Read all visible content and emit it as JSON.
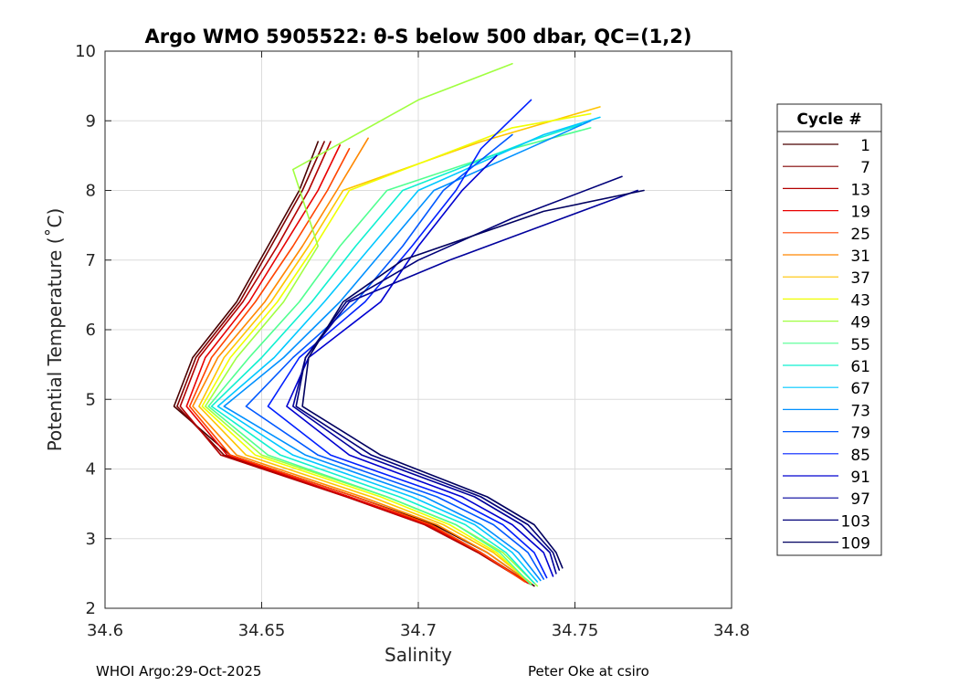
{
  "chart_data": {
    "type": "line",
    "title": "Argo WMO 5905522: θ-S below 500 dbar,  QC=(1,2)",
    "xlabel": "Salinity",
    "ylabel": "Potential Temperature (˚C)",
    "xlim": [
      34.6,
      34.8
    ],
    "ylim": [
      2,
      10
    ],
    "xticks": [
      "34.6",
      "34.65",
      "34.7",
      "34.75",
      "34.8"
    ],
    "yticks": [
      "2",
      "3",
      "4",
      "5",
      "6",
      "7",
      "8",
      "9",
      "10"
    ],
    "grid": true,
    "legend": {
      "title": "Cycle #",
      "placement": "right",
      "entries": [
        {
          "label": "1",
          "color": "#4a0000"
        },
        {
          "label": "7",
          "color": "#800000"
        },
        {
          "label": "13",
          "color": "#b40000"
        },
        {
          "label": "19",
          "color": "#e80000"
        },
        {
          "label": "25",
          "color": "#ff4400"
        },
        {
          "label": "31",
          "color": "#ff8800"
        },
        {
          "label": "37",
          "color": "#ffc400"
        },
        {
          "label": "43",
          "color": "#f0ff00"
        },
        {
          "label": "49",
          "color": "#a0ff40"
        },
        {
          "label": "55",
          "color": "#50ff90"
        },
        {
          "label": "61",
          "color": "#10f0d0"
        },
        {
          "label": "67",
          "color": "#00c8ff"
        },
        {
          "label": "73",
          "color": "#0090ff"
        },
        {
          "label": "79",
          "color": "#0058ff"
        },
        {
          "label": "85",
          "color": "#0020ff"
        },
        {
          "label": "91",
          "color": "#0000d0"
        },
        {
          "label": "97",
          "color": "#00009c"
        },
        {
          "label": "103",
          "color": "#000078"
        },
        {
          "label": "109",
          "color": "#000060"
        }
      ]
    },
    "series": [
      {
        "name": "1",
        "x": [
          34.737,
          34.722,
          34.705,
          34.68,
          34.64,
          34.622,
          34.628,
          34.642,
          34.652,
          34.662,
          34.668
        ],
        "y": [
          2.32,
          2.8,
          3.2,
          3.6,
          4.2,
          4.9,
          5.6,
          6.4,
          7.2,
          8.0,
          8.7
        ]
      },
      {
        "name": "7",
        "x": [
          34.736,
          34.72,
          34.703,
          34.678,
          34.638,
          34.623,
          34.629,
          34.643,
          34.653,
          34.663,
          34.67
        ],
        "y": [
          2.34,
          2.8,
          3.2,
          3.6,
          4.2,
          4.9,
          5.6,
          6.4,
          7.2,
          8.0,
          8.7
        ]
      },
      {
        "name": "13",
        "x": [
          34.735,
          34.719,
          34.702,
          34.677,
          34.637,
          34.624,
          34.63,
          34.644,
          34.655,
          34.665,
          34.672
        ],
        "y": [
          2.36,
          2.8,
          3.2,
          3.6,
          4.2,
          4.9,
          5.6,
          6.4,
          7.2,
          8.0,
          8.7
        ]
      },
      {
        "name": "19",
        "x": [
          34.735,
          34.72,
          34.703,
          34.678,
          34.639,
          34.626,
          34.632,
          34.646,
          34.657,
          34.668,
          34.675
        ],
        "y": [
          2.36,
          2.8,
          3.2,
          3.6,
          4.2,
          4.9,
          5.6,
          6.4,
          7.2,
          8.0,
          8.65
        ]
      },
      {
        "name": "25",
        "x": [
          34.734,
          34.72,
          34.704,
          34.68,
          34.64,
          34.627,
          34.634,
          34.648,
          34.66,
          34.671,
          34.678
        ],
        "y": [
          2.38,
          2.8,
          3.2,
          3.6,
          4.2,
          4.9,
          5.6,
          6.4,
          7.2,
          8.0,
          8.6
        ]
      },
      {
        "name": "31",
        "x": [
          34.735,
          34.722,
          34.706,
          34.682,
          34.642,
          34.628,
          34.636,
          34.651,
          34.663,
          34.674,
          34.684
        ],
        "y": [
          2.38,
          2.8,
          3.2,
          3.6,
          4.2,
          4.9,
          5.6,
          6.4,
          7.2,
          8.0,
          8.75
        ]
      },
      {
        "name": "37",
        "x": [
          34.736,
          34.724,
          34.708,
          34.685,
          34.645,
          34.63,
          34.638,
          34.653,
          34.665,
          34.676,
          34.72,
          34.758
        ],
        "y": [
          2.36,
          2.8,
          3.2,
          3.6,
          4.2,
          4.9,
          5.6,
          6.4,
          7.2,
          8.0,
          8.7,
          9.2
        ]
      },
      {
        "name": "43",
        "x": [
          34.736,
          34.725,
          34.71,
          34.688,
          34.648,
          34.631,
          34.64,
          34.655,
          34.667,
          34.678,
          34.73,
          34.755
        ],
        "y": [
          2.34,
          2.8,
          3.2,
          3.6,
          4.2,
          4.9,
          5.6,
          6.4,
          7.2,
          8.0,
          8.9,
          9.1
        ]
      },
      {
        "name": "49",
        "x": [
          34.738,
          34.727,
          34.712,
          34.69,
          34.65,
          34.632,
          34.642,
          34.657,
          34.668,
          34.66,
          34.7,
          34.73
        ],
        "y": [
          2.32,
          2.8,
          3.2,
          3.6,
          4.2,
          4.9,
          5.6,
          6.4,
          7.2,
          8.3,
          9.3,
          9.82
        ]
      },
      {
        "name": "55",
        "x": [
          34.736,
          34.726,
          34.712,
          34.69,
          34.652,
          34.633,
          34.646,
          34.662,
          34.675,
          34.69,
          34.73,
          34.755
        ],
        "y": [
          2.34,
          2.8,
          3.2,
          3.6,
          4.2,
          4.9,
          5.6,
          6.4,
          7.2,
          8.0,
          8.6,
          8.9
        ]
      },
      {
        "name": "61",
        "x": [
          34.737,
          34.728,
          34.715,
          34.694,
          34.656,
          34.634,
          34.65,
          34.666,
          34.68,
          34.695,
          34.735,
          34.752
        ],
        "y": [
          2.36,
          2.8,
          3.2,
          3.6,
          4.2,
          4.9,
          5.6,
          6.4,
          7.2,
          8.0,
          8.7,
          8.95
        ]
      },
      {
        "name": "67",
        "x": [
          34.738,
          34.73,
          34.718,
          34.698,
          34.66,
          34.636,
          34.654,
          34.67,
          34.685,
          34.7,
          34.74,
          34.758
        ],
        "y": [
          2.38,
          2.8,
          3.2,
          3.6,
          4.2,
          4.9,
          5.6,
          6.4,
          7.2,
          8.0,
          8.8,
          9.05
        ]
      },
      {
        "name": "73",
        "x": [
          34.739,
          34.732,
          34.72,
          34.702,
          34.664,
          34.638,
          34.657,
          34.675,
          34.69,
          34.705,
          34.735,
          34.755
        ],
        "y": [
          2.4,
          2.8,
          3.2,
          3.6,
          4.2,
          4.9,
          5.6,
          6.4,
          7.2,
          8.0,
          8.6,
          9.0
        ]
      },
      {
        "name": "79",
        "x": [
          34.74,
          34.735,
          34.724,
          34.706,
          34.668,
          34.645,
          34.66,
          34.68,
          34.695,
          34.708,
          34.73
        ],
        "y": [
          2.42,
          2.8,
          3.2,
          3.6,
          4.2,
          4.9,
          5.6,
          6.4,
          7.2,
          8.0,
          8.8
        ]
      },
      {
        "name": "85",
        "x": [
          34.741,
          34.737,
          34.727,
          34.71,
          34.672,
          34.652,
          34.662,
          34.683,
          34.698,
          34.712,
          34.72,
          34.736
        ],
        "y": [
          2.44,
          2.8,
          3.2,
          3.6,
          4.2,
          4.9,
          5.6,
          6.4,
          7.2,
          8.0,
          8.6,
          9.3
        ]
      },
      {
        "name": "91",
        "x": [
          34.743,
          34.74,
          34.73,
          34.714,
          34.678,
          34.658,
          34.665,
          34.688,
          34.7,
          34.714,
          34.725
        ],
        "y": [
          2.46,
          2.8,
          3.2,
          3.6,
          4.2,
          4.9,
          5.6,
          6.4,
          7.2,
          8.0,
          8.5
        ]
      },
      {
        "name": "97",
        "x": [
          34.744,
          34.742,
          34.733,
          34.718,
          34.682,
          34.66,
          34.664,
          34.678,
          34.71,
          34.74,
          34.77
        ],
        "y": [
          2.5,
          2.8,
          3.2,
          3.6,
          4.2,
          4.9,
          5.6,
          6.4,
          7.0,
          7.5,
          8.0
        ]
      },
      {
        "name": "103",
        "x": [
          34.745,
          34.743,
          34.735,
          34.72,
          34.685,
          34.661,
          34.664,
          34.677,
          34.7,
          34.73,
          34.765
        ],
        "y": [
          2.55,
          2.8,
          3.2,
          3.6,
          4.2,
          4.9,
          5.6,
          6.4,
          7.0,
          7.6,
          8.2
        ]
      },
      {
        "name": "109",
        "x": [
          34.746,
          34.744,
          34.737,
          34.722,
          34.688,
          34.663,
          34.665,
          34.676,
          34.695,
          34.74,
          34.772
        ],
        "y": [
          2.58,
          2.8,
          3.2,
          3.6,
          4.2,
          4.9,
          5.6,
          6.4,
          7.0,
          7.7,
          8.0
        ]
      }
    ]
  },
  "footer": {
    "left": "WHOI Argo:29-Oct-2025",
    "right": "Peter Oke at csiro"
  }
}
